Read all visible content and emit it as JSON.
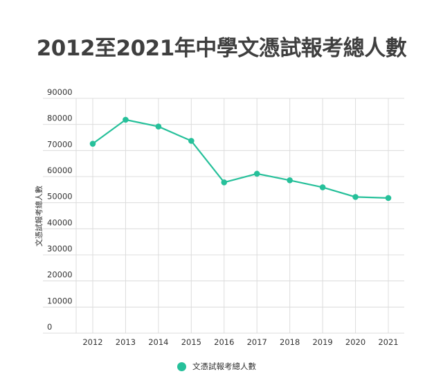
{
  "chart_data": {
    "type": "line",
    "title": "2012至2021年中學文憑試報考總人數",
    "xlabel": "",
    "ylabel": "文憑試報考總人數",
    "x": [
      "2012",
      "2013",
      "2014",
      "2015",
      "2016",
      "2017",
      "2018",
      "2019",
      "2020",
      "2021"
    ],
    "series": [
      {
        "name": "文憑試報考總人數",
        "values": [
          72600,
          81800,
          79200,
          73700,
          57800,
          61100,
          58600,
          55900,
          52200,
          51800
        ],
        "color": "#26c09a"
      }
    ],
    "yticks": [
      0,
      10000,
      20000,
      30000,
      40000,
      50000,
      60000,
      70000,
      80000,
      90000
    ],
    "ylim": [
      0,
      90000
    ],
    "grid": true,
    "legend_position": "bottom"
  }
}
